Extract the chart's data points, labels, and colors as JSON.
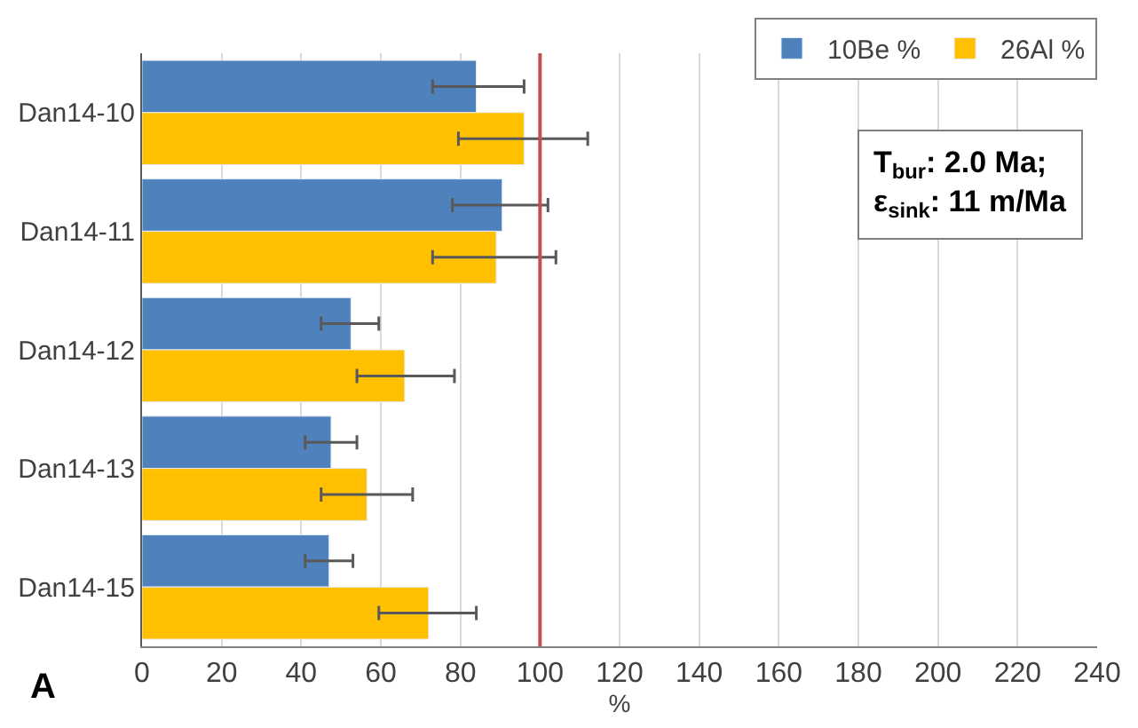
{
  "chart_data": {
    "type": "bar",
    "orientation": "horizontal",
    "xlabel": "%",
    "categories": [
      "Dan14-10",
      "Dan14-11",
      "Dan14-12",
      "Dan14-13",
      "Dan14-15"
    ],
    "series": [
      {
        "name": "10Be %",
        "color": "#4f81bd",
        "values": [
          84,
          90.5,
          52.5,
          47.5,
          47
        ],
        "errors": [
          [
            73,
            96
          ],
          [
            78,
            102
          ],
          [
            45,
            59.5
          ],
          [
            41,
            54
          ],
          [
            41,
            53
          ]
        ]
      },
      {
        "name": "26Al %",
        "color": "#ffc000",
        "values": [
          96,
          89,
          66,
          56.5,
          72
        ],
        "errors": [
          [
            79.5,
            112
          ],
          [
            73,
            104
          ],
          [
            54,
            78.5
          ],
          [
            45,
            68
          ],
          [
            59.5,
            84
          ]
        ]
      }
    ],
    "xlim": [
      0,
      240
    ],
    "xticks": [
      0,
      20,
      40,
      60,
      80,
      100,
      120,
      140,
      160,
      180,
      200,
      220,
      240
    ],
    "grid": "x",
    "legend": "top right",
    "ref_lines": [
      {
        "axis": "x",
        "value": 100,
        "color": "#c0504d"
      }
    ],
    "annotations": [
      "T$_{bur}$: 2.0 Ma;\nε$_{sink}$: 11 m/Ma",
      "A"
    ]
  }
}
